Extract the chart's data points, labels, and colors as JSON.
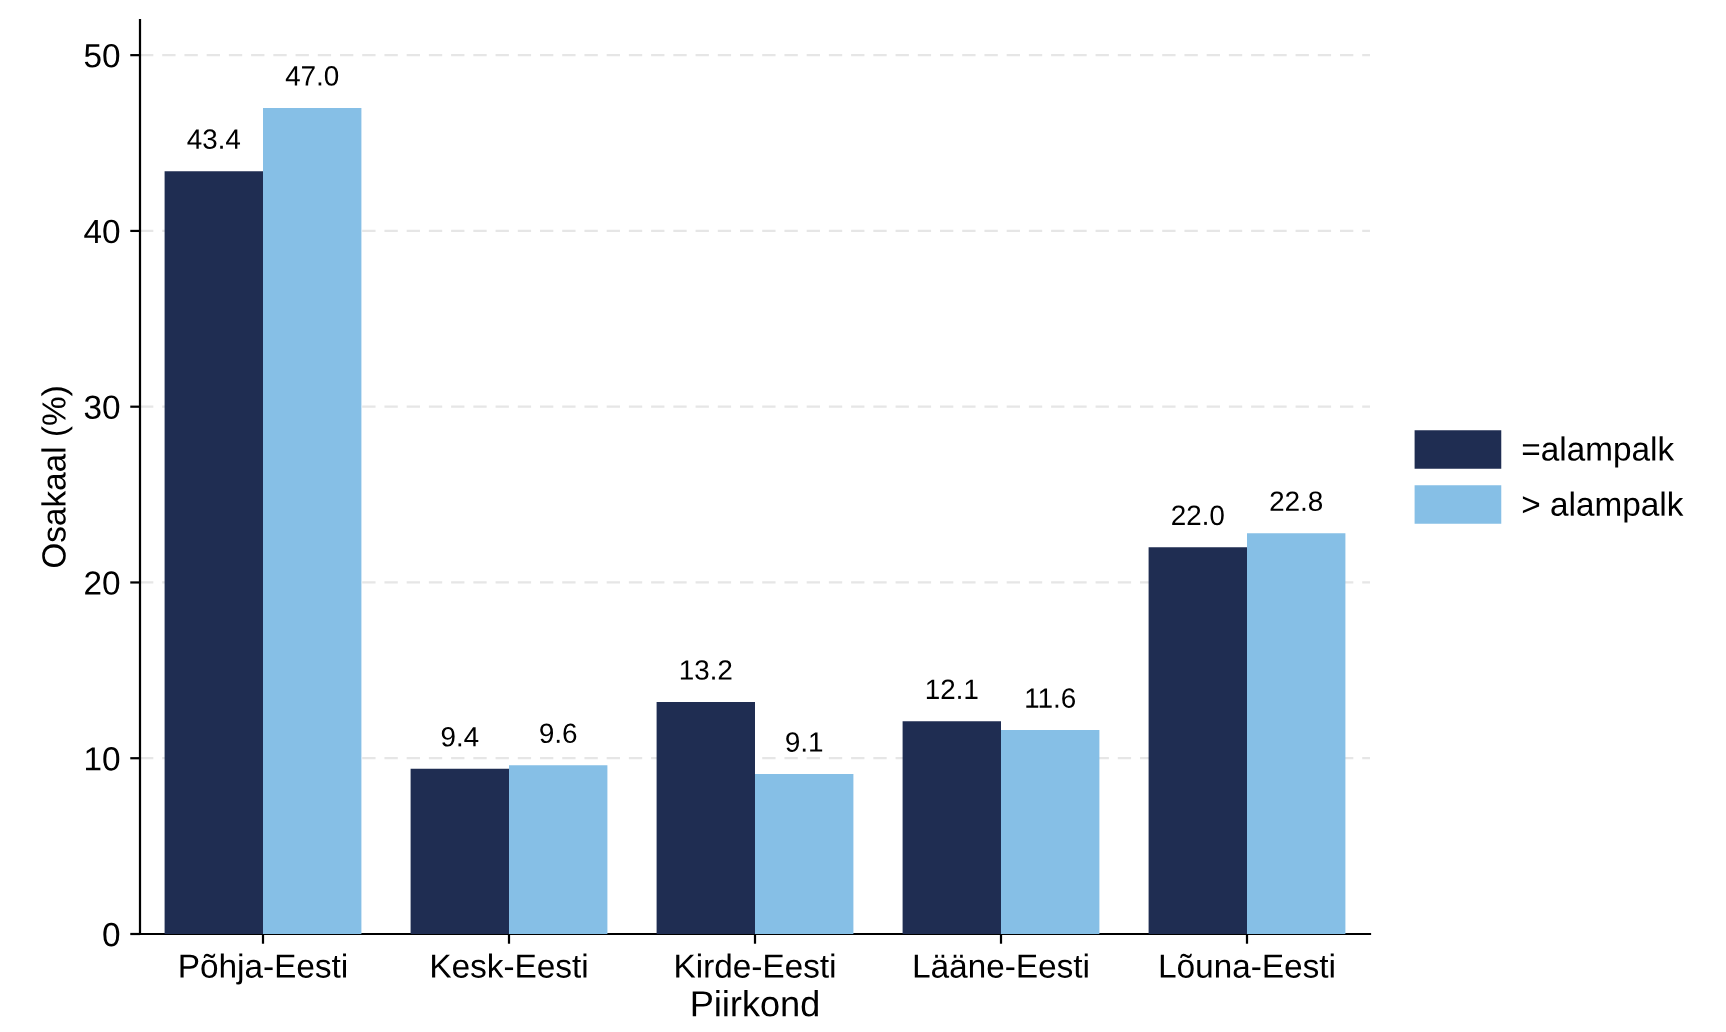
{
  "chart_data": {
    "type": "bar",
    "xlabel": "Piirkond",
    "ylabel": "Osakaal (%)",
    "categories": [
      "Põhja-Eesti",
      "Kesk-Eesti",
      "Kirde-Eesti",
      "Lääne-Eesti",
      "Lõuna-Eesti"
    ],
    "series": [
      {
        "name": "=alampalk",
        "color": "#1f2d52",
        "values": [
          43.4,
          9.4,
          13.2,
          12.1,
          22.0
        ],
        "value_labels": [
          "43.4",
          "9.4",
          "13.2",
          "12.1",
          "22.0"
        ]
      },
      {
        "name": "> alampalk",
        "color": "#86bfe6",
        "values": [
          47.0,
          9.6,
          9.1,
          11.6,
          22.8
        ],
        "value_labels": [
          "47.0",
          "9.6",
          "9.1",
          "11.6",
          "22.8"
        ]
      }
    ],
    "ylim": [
      0,
      52
    ],
    "yticks": [
      0,
      10,
      20,
      30,
      40,
      50
    ],
    "grid": "y",
    "legend": "right"
  }
}
